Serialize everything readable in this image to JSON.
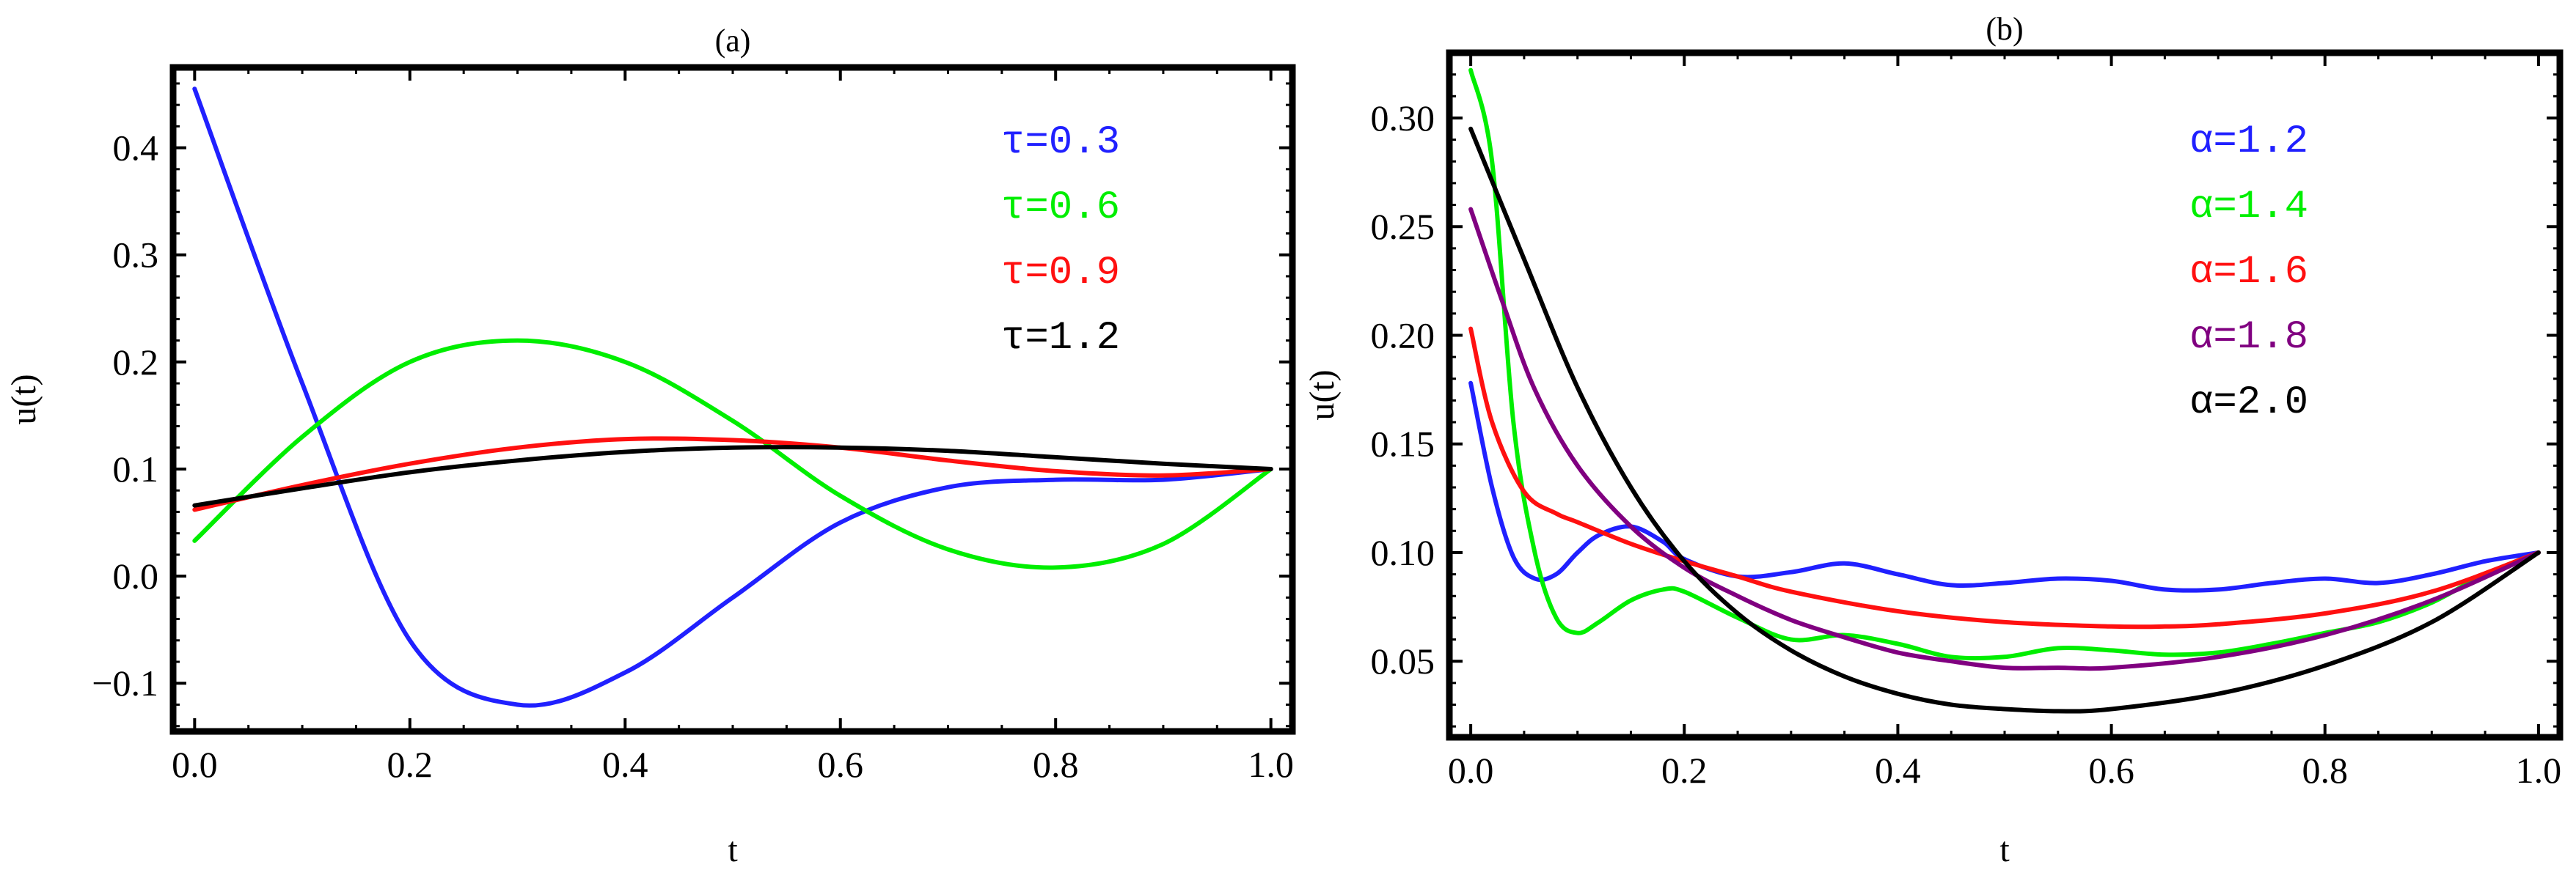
{
  "chart_data": [
    {
      "type": "line",
      "title": "(a)",
      "xlabel": "t",
      "ylabel": "u(t)",
      "xlim": [
        -0.02,
        1.02
      ],
      "ylim": [
        -0.145,
        0.475
      ],
      "xticks": [
        0.0,
        0.2,
        0.4,
        0.6,
        0.8,
        1.0
      ],
      "xtick_labels": [
        "0.0",
        "0.2",
        "0.4",
        "0.6",
        "0.8",
        "1.0"
      ],
      "yticks": [
        -0.1,
        0.0,
        0.1,
        0.2,
        0.3,
        0.4
      ],
      "ytick_labels": [
        "−0.1",
        "0.0",
        "0.1",
        "0.2",
        "0.3",
        "0.4"
      ],
      "legend_position": "top-right",
      "series": [
        {
          "name": "τ=0.3",
          "color": "#2020ff",
          "x": [
            0.0,
            0.1,
            0.2,
            0.3,
            0.4,
            0.5,
            0.6,
            0.7,
            0.8,
            0.9,
            1.0
          ],
          "y": [
            0.455,
            0.18,
            -0.06,
            -0.12,
            -0.09,
            -0.02,
            0.05,
            0.083,
            0.09,
            0.09,
            0.1
          ]
        },
        {
          "name": "τ=0.6",
          "color": "#00ee00",
          "x": [
            0.0,
            0.1,
            0.2,
            0.3,
            0.4,
            0.5,
            0.6,
            0.7,
            0.8,
            0.9,
            1.0
          ],
          "y": [
            0.033,
            0.13,
            0.2,
            0.22,
            0.2,
            0.145,
            0.075,
            0.025,
            0.008,
            0.03,
            0.1
          ]
        },
        {
          "name": "τ=0.9",
          "color": "#ff1010",
          "x": [
            0.0,
            0.1,
            0.2,
            0.3,
            0.4,
            0.5,
            0.6,
            0.7,
            0.8,
            0.9,
            1.0
          ],
          "y": [
            0.062,
            0.085,
            0.105,
            0.12,
            0.128,
            0.127,
            0.12,
            0.108,
            0.098,
            0.094,
            0.1
          ]
        },
        {
          "name": "τ=1.2",
          "color": "#000000",
          "x": [
            0.0,
            0.1,
            0.2,
            0.3,
            0.4,
            0.5,
            0.6,
            0.7,
            0.8,
            0.9,
            1.0
          ],
          "y": [
            0.066,
            0.082,
            0.097,
            0.108,
            0.116,
            0.12,
            0.12,
            0.117,
            0.111,
            0.105,
            0.1
          ]
        }
      ]
    },
    {
      "type": "line",
      "title": "(b)",
      "xlabel": "t",
      "ylabel": "u(t)",
      "xlim": [
        -0.02,
        1.02
      ],
      "ylim": [
        0.015,
        0.33
      ],
      "xticks": [
        0.0,
        0.2,
        0.4,
        0.6,
        0.8,
        1.0
      ],
      "xtick_labels": [
        "0.0",
        "0.2",
        "0.4",
        "0.6",
        "0.8",
        "1.0"
      ],
      "yticks": [
        0.05,
        0.1,
        0.15,
        0.2,
        0.25,
        0.3
      ],
      "ytick_labels": [
        "0.05",
        "0.10",
        "0.15",
        "0.20",
        "0.25",
        "0.30"
      ],
      "legend_position": "top-right",
      "series": [
        {
          "name": "α=1.2",
          "color": "#2020ff",
          "x": [
            0.0,
            0.02,
            0.04,
            0.06,
            0.08,
            0.1,
            0.12,
            0.15,
            0.18,
            0.2,
            0.25,
            0.3,
            0.35,
            0.4,
            0.45,
            0.5,
            0.55,
            0.6,
            0.65,
            0.7,
            0.75,
            0.8,
            0.85,
            0.9,
            0.95,
            1.0
          ],
          "y": [
            0.178,
            0.13,
            0.098,
            0.088,
            0.09,
            0.1,
            0.108,
            0.112,
            0.105,
            0.097,
            0.089,
            0.091,
            0.095,
            0.09,
            0.085,
            0.086,
            0.088,
            0.087,
            0.083,
            0.083,
            0.086,
            0.088,
            0.086,
            0.09,
            0.096,
            0.1
          ]
        },
        {
          "name": "α=1.4",
          "color": "#00ee00",
          "x": [
            0.0,
            0.02,
            0.04,
            0.06,
            0.08,
            0.1,
            0.12,
            0.15,
            0.18,
            0.2,
            0.25,
            0.3,
            0.35,
            0.4,
            0.45,
            0.5,
            0.55,
            0.6,
            0.65,
            0.7,
            0.75,
            0.8,
            0.85,
            0.9,
            0.95,
            1.0
          ],
          "y": [
            0.322,
            0.28,
            0.16,
            0.1,
            0.07,
            0.063,
            0.068,
            0.078,
            0.083,
            0.082,
            0.07,
            0.06,
            0.062,
            0.058,
            0.052,
            0.052,
            0.056,
            0.055,
            0.053,
            0.054,
            0.058,
            0.063,
            0.068,
            0.077,
            0.09,
            0.1
          ]
        },
        {
          "name": "α=1.6",
          "color": "#ff1010",
          "x": [
            0.0,
            0.02,
            0.05,
            0.08,
            0.1,
            0.15,
            0.2,
            0.25,
            0.3,
            0.4,
            0.5,
            0.6,
            0.65,
            0.7,
            0.8,
            0.9,
            1.0
          ],
          "y": [
            0.203,
            0.16,
            0.128,
            0.118,
            0.114,
            0.104,
            0.096,
            0.089,
            0.082,
            0.073,
            0.068,
            0.066,
            0.066,
            0.067,
            0.072,
            0.082,
            0.1
          ]
        },
        {
          "name": "α=1.8",
          "color": "#800080",
          "x": [
            0.0,
            0.03,
            0.06,
            0.1,
            0.15,
            0.2,
            0.25,
            0.3,
            0.35,
            0.4,
            0.45,
            0.5,
            0.55,
            0.6,
            0.7,
            0.8,
            0.9,
            1.0
          ],
          "y": [
            0.258,
            0.215,
            0.175,
            0.14,
            0.112,
            0.093,
            0.08,
            0.069,
            0.061,
            0.054,
            0.05,
            0.047,
            0.047,
            0.047,
            0.052,
            0.062,
            0.078,
            0.1
          ]
        },
        {
          "name": "α=2.0",
          "color": "#000000",
          "x": [
            0.0,
            0.05,
            0.1,
            0.15,
            0.2,
            0.25,
            0.3,
            0.35,
            0.4,
            0.45,
            0.5,
            0.55,
            0.6,
            0.7,
            0.8,
            0.9,
            1.0
          ],
          "y": [
            0.295,
            0.235,
            0.176,
            0.13,
            0.096,
            0.072,
            0.055,
            0.043,
            0.035,
            0.03,
            0.028,
            0.027,
            0.028,
            0.035,
            0.048,
            0.068,
            0.1
          ]
        }
      ]
    }
  ]
}
